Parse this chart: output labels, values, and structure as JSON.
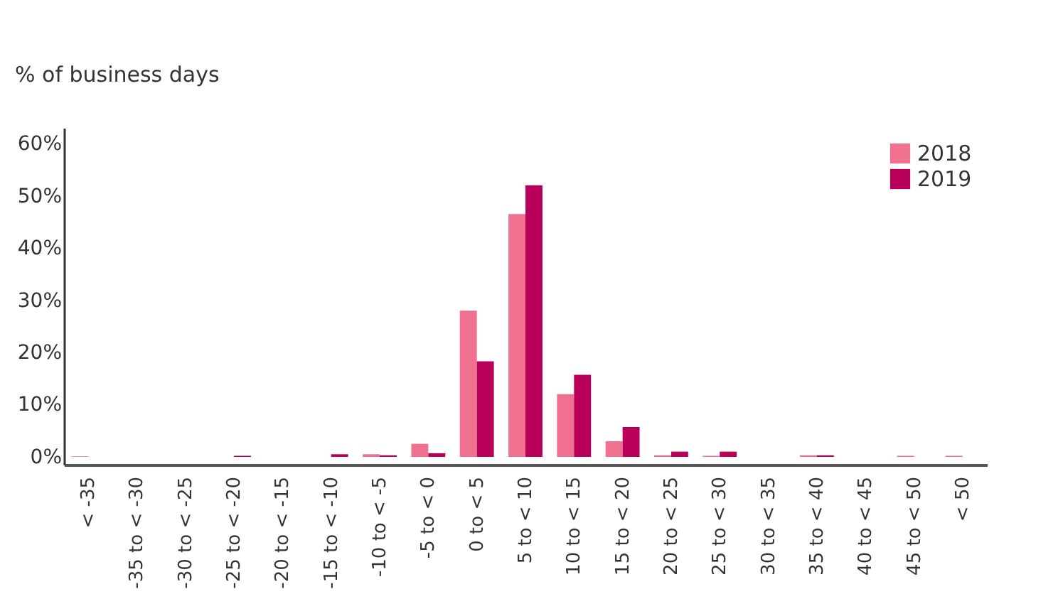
{
  "chart_data": {
    "type": "bar",
    "ylabel": "% of business days",
    "categories": [
      "< -35",
      "-35 to < -30",
      "-30 to < -25",
      "-25 to < -20",
      "-20 to < -15",
      "-15 to < -10",
      "-10 to < -5",
      "-5 to < 0",
      "0 to < 5",
      "5 to < 10",
      "10 to < 15",
      "15 to < 20",
      "20 to < 25",
      "25 to < 30",
      "30 to < 35",
      "35 to < 40",
      "40 to < 45",
      "45 to < 50",
      "< 50"
    ],
    "series": [
      {
        "name": "2018",
        "color": "#f07090",
        "values": [
          0.1,
          0,
          0,
          0,
          0,
          0,
          0.5,
          2.5,
          28,
          46.5,
          12,
          3,
          0.3,
          0.2,
          0,
          0.3,
          0,
          0.2,
          0.2
        ]
      },
      {
        "name": "2019",
        "color": "#b8005a",
        "values": [
          0,
          0,
          0,
          0.2,
          0,
          0.5,
          0.3,
          0.7,
          18.3,
          52,
          15.7,
          5.7,
          1,
          1,
          0,
          0.3,
          0,
          0,
          0
        ]
      }
    ],
    "ylim": [
      -1.5,
      63
    ],
    "yticks": [
      {
        "value": 0,
        "label": "0%"
      },
      {
        "value": 10,
        "label": "10%"
      },
      {
        "value": 20,
        "label": "20%"
      },
      {
        "value": 30,
        "label": "30%"
      },
      {
        "value": 40,
        "label": "40%"
      },
      {
        "value": 50,
        "label": "50%"
      },
      {
        "value": 60,
        "label": "60%"
      }
    ],
    "grid": false,
    "legend": "top right"
  }
}
